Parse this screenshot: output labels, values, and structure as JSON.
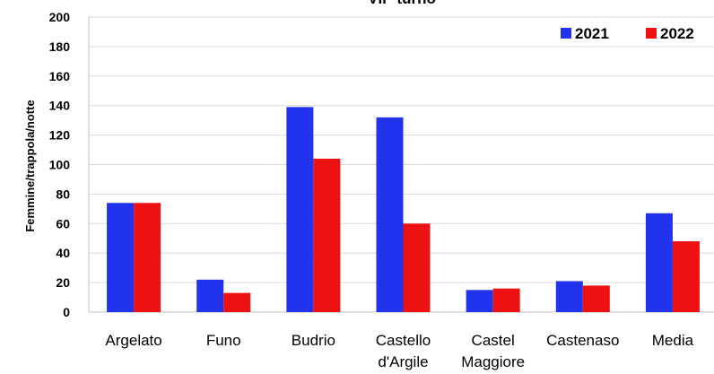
{
  "chart_data": {
    "type": "bar",
    "title": "VII° turno",
    "xlabel": "",
    "ylabel": "Femmine/trappola/notte",
    "ylim": [
      0,
      200
    ],
    "yticks": [
      0,
      20,
      40,
      60,
      80,
      100,
      120,
      140,
      160,
      180,
      200
    ],
    "grid": true,
    "legend_position": "top-right",
    "categories": [
      [
        "Argelato"
      ],
      [
        "Funo"
      ],
      [
        "Budrio"
      ],
      [
        "Castello",
        "d'Argile"
      ],
      [
        "Castel",
        "Maggiore"
      ],
      [
        "Castenaso"
      ],
      [
        "Media"
      ]
    ],
    "series": [
      {
        "name": "2021",
        "color": "#2233ee",
        "values": [
          74,
          22,
          139,
          132,
          15,
          21,
          67
        ]
      },
      {
        "name": "2022",
        "color": "#ee1111",
        "values": [
          74,
          13,
          104,
          60,
          16,
          18,
          48
        ]
      }
    ]
  }
}
